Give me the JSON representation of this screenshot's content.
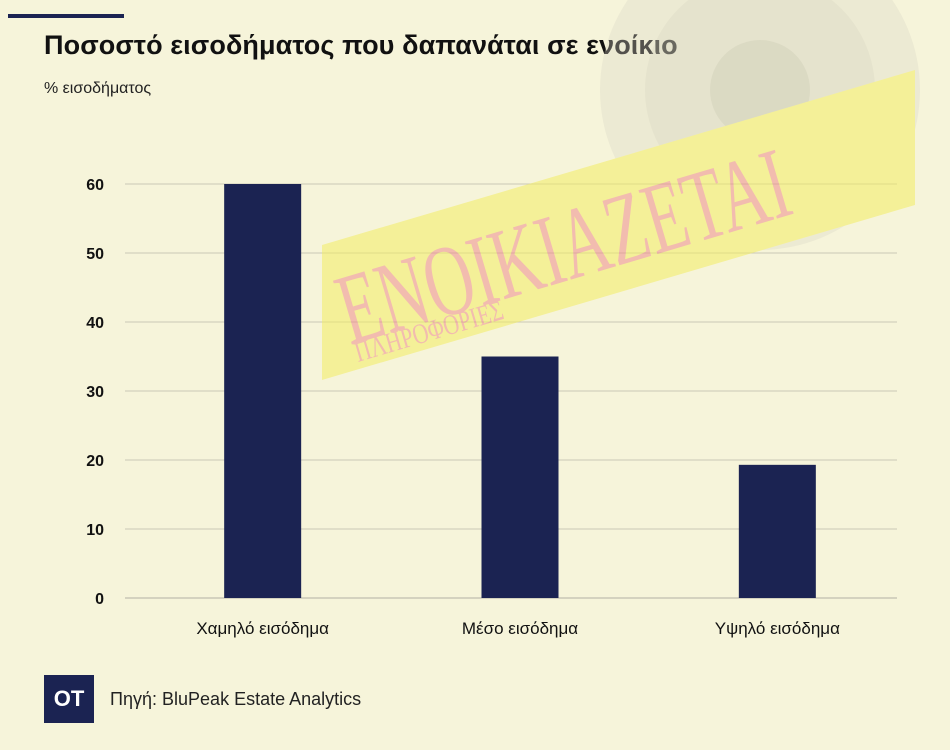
{
  "title": "Ποσοστό εισοδήματος που δαπανάται σε ενοίκιο",
  "subtitle": "% εισοδήματος",
  "footer": {
    "logo": "OT",
    "source": "Πηγή: BluPeak Estate Analytics"
  },
  "watermark": {
    "main": "ΕΝΟΙΚΙΑΖΕΤΑΙ",
    "sub": "ΠΛΗΡΟΦΟΡΙΕΣ"
  },
  "colors": {
    "bar": "#1b2352",
    "background": "#f6f4da",
    "grid": "#c9c7b6",
    "sign": "#f4ee63",
    "sign_text": "#ef8f8c"
  },
  "chart_data": {
    "type": "bar",
    "title": "Ποσοστό εισοδήματος που δαπανάται σε ενοίκιο",
    "ylabel": "% εισοδήματος",
    "xlabel": "",
    "categories": [
      "Χαμηλό εισόδημα",
      "Μέσο εισόδημα",
      "Υψηλό εισόδημα"
    ],
    "values": [
      60,
      35,
      19.3
    ],
    "ylim": [
      0,
      60
    ],
    "yticks": [
      0,
      10,
      20,
      30,
      40,
      50,
      60
    ],
    "grid": true
  }
}
